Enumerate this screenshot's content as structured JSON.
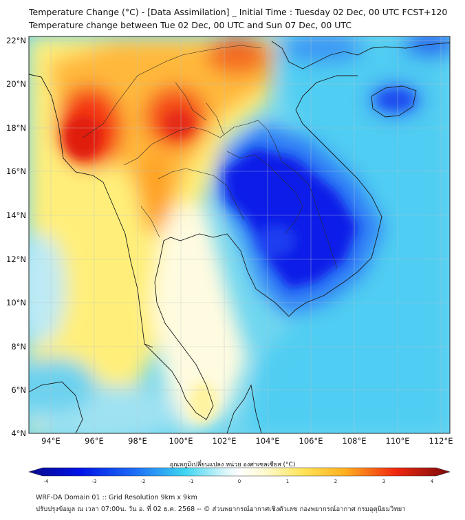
{
  "title_line1": "Temperature Change (°C) - [Data Assimilation] _ Initial Time : Tuesday 02 Dec, 00 UTC FCST+120",
  "title_line2": "Temperature change between Tue 02 Dec, 00 UTC and Sun 07 Dec, 00 UTC",
  "colorbar_label": "อุณหภูมิเปลี่ยนแปลง หน่วย องศาเซลเซียส (°C)",
  "footer_line1": "WRF-DA Domain 01 :: Grid Resolution 9km x 9km",
  "footer_line2": "ปรับปรุงข้อมูล ณ เวลา 07:00น. วัน อ. ที่ 02 ธ.ค. 2568 -- © ส่วนพยากรณ์อากาศเชิงตัวเลข กองพยากรณ์อากาศ กรมอุตุนิยมวิทยา",
  "map": {
    "lon_ticks": [
      "94°E",
      "96°E",
      "98°E",
      "100°E",
      "102°E",
      "104°E",
      "106°E",
      "108°E",
      "110°E",
      "112°E"
    ],
    "lat_ticks": [
      "22°N",
      "20°N",
      "18°N",
      "16°N",
      "14°N",
      "12°N",
      "10°N",
      "8°N",
      "6°N",
      "4°N"
    ],
    "lon_range": [
      93,
      112.5
    ],
    "lat_range": [
      4,
      22.2
    ]
  },
  "colorbar": {
    "ticks": [
      "-4",
      "-3",
      "-2",
      "-1",
      "0",
      "1",
      "2",
      "3",
      "4"
    ],
    "range": [
      -4,
      4
    ]
  }
}
